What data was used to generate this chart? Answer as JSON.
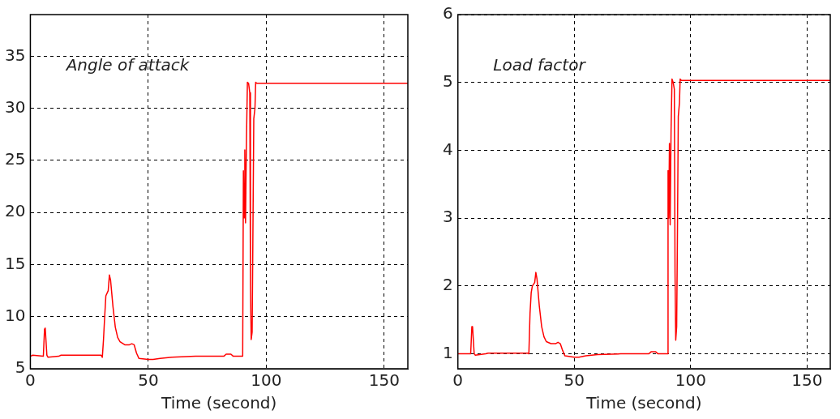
{
  "chart_data": [
    {
      "type": "line",
      "xlabel": "Time (second)",
      "annotations": [
        "Angle of attack"
      ],
      "color": "#ff0000",
      "marker": "none",
      "grid": true,
      "x": [
        0,
        1,
        5.5,
        6,
        6.3,
        7,
        7.5,
        12,
        13,
        20,
        30,
        30.5,
        31,
        31.5,
        32,
        33,
        33.5,
        34,
        35,
        36,
        37,
        38,
        40,
        42,
        43,
        44,
        45,
        46,
        50,
        52,
        55,
        60,
        70,
        82,
        83,
        85,
        86,
        90,
        90.3,
        90.6,
        90.9,
        91.2,
        91.6,
        92,
        92.5,
        93,
        93.3,
        93.6,
        94,
        94.3,
        94.7,
        95.2,
        95.5,
        96,
        160
      ],
      "values": [
        6.2,
        6.3,
        6.2,
        8.8,
        8.9,
        6.3,
        6.1,
        6.2,
        6.3,
        6.3,
        6.3,
        6.1,
        7.8,
        10,
        12,
        12.5,
        14,
        13.5,
        11,
        9,
        8,
        7.6,
        7.3,
        7.3,
        7.4,
        7.3,
        6.5,
        6,
        5.9,
        5.9,
        6,
        6.1,
        6.2,
        6.2,
        6.4,
        6.4,
        6.2,
        6.2,
        24,
        19.5,
        26,
        19,
        27,
        32.5,
        32.4,
        31.5,
        13,
        7.8,
        8.5,
        17,
        29,
        30,
        32.5,
        32.4,
        32.4
      ],
      "xlim": [
        0,
        160
      ],
      "ylim": [
        5,
        39
      ],
      "xticks": [
        0,
        50,
        100,
        150
      ],
      "yticks": [
        5,
        10,
        15,
        20,
        25,
        30,
        35
      ]
    },
    {
      "type": "line",
      "xlabel": "Time (second)",
      "annotations": [
        "Load factor"
      ],
      "color": "#ff0000",
      "marker": "none",
      "grid": true,
      "x": [
        0,
        1,
        5.5,
        6,
        6.3,
        7,
        7.5,
        12,
        13,
        20,
        30,
        30.5,
        31,
        31.5,
        32,
        33,
        33.5,
        34,
        35,
        36,
        37,
        38,
        40,
        42,
        43,
        44,
        45,
        46,
        50,
        52,
        55,
        60,
        70,
        82,
        83,
        85,
        86,
        90,
        90.3,
        90.6,
        90.9,
        91.2,
        91.6,
        92,
        92.5,
        93,
        93.3,
        93.6,
        94,
        94.3,
        94.7,
        95.2,
        95.5,
        96,
        160
      ],
      "values": [
        1,
        1,
        1,
        1.4,
        1.4,
        1,
        0.98,
        1,
        1.01,
        1.01,
        1.01,
        1,
        1.6,
        1.9,
        2,
        2.05,
        2.2,
        2.1,
        1.7,
        1.4,
        1.25,
        1.18,
        1.15,
        1.15,
        1.17,
        1.15,
        1.05,
        0.97,
        0.95,
        0.95,
        0.97,
        0.99,
        1,
        1,
        1.03,
        1.03,
        1,
        1,
        3.7,
        3,
        4.1,
        2.9,
        4.3,
        5.05,
        5.0,
        4.9,
        2.2,
        1.2,
        1.4,
        2.6,
        4.5,
        4.7,
        5.05,
        5.03,
        5.03
      ],
      "xlim": [
        0,
        160
      ],
      "ylim": [
        0.78,
        6
      ],
      "xticks": [
        0,
        50,
        100,
        150
      ],
      "yticks": [
        1,
        2,
        3,
        4,
        5,
        6
      ]
    }
  ]
}
